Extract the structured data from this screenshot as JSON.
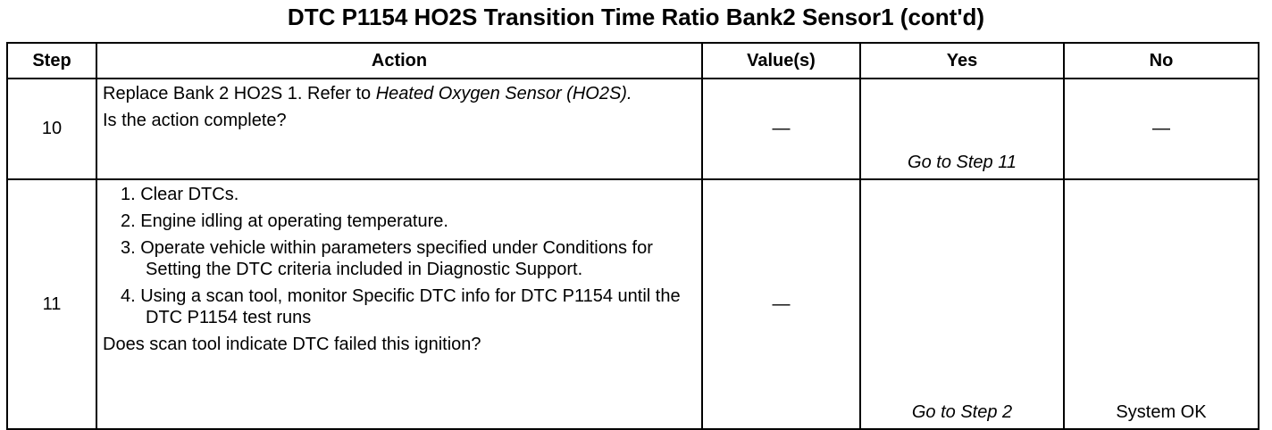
{
  "header": {
    "title": "DTC P1154 HO2S Transition Time Ratio Bank2 Sensor1 (cont'd)"
  },
  "table": {
    "columns": [
      "Step",
      "Action",
      "Value(s)",
      "Yes",
      "No"
    ],
    "rows": [
      {
        "step": "10",
        "action": {
          "text": "Replace Bank 2 HO2S 1. Refer to ",
          "ref": "Heated Oxygen Sensor (HO2S)",
          "end": ".",
          "question": "Is the action complete?"
        },
        "value": "—",
        "yes": "Go to Step 11",
        "no": "—"
      },
      {
        "step": "11",
        "action": {
          "items": [
            "1. Clear DTCs.",
            "2. Engine idling at operating temperature.",
            "3. Operate vehicle within parameters specified under Conditions for Setting the DTC criteria included in Diagnostic Support.",
            "4. Using a scan tool, monitor Specific DTC info for DTC P1154 until the DTC P1154 test runs"
          ],
          "question": "Does scan tool indicate DTC failed this ignition?"
        },
        "value": "—",
        "yes": "Go to Step 2",
        "no": "System OK"
      }
    ]
  }
}
